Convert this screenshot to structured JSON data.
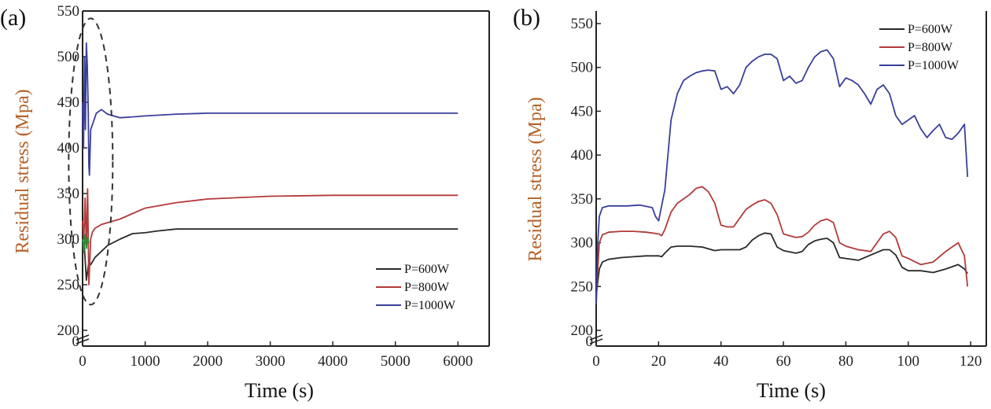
{
  "colors": {
    "p600": "#2a2a2a",
    "p800": "#b33a3a",
    "p1000": "#3a3f9a",
    "green": "#2e8b3a",
    "ylabel": "#b4622a",
    "axis": "#222222"
  },
  "chart_data": [
    {
      "panel": "(a)",
      "type": "line",
      "xlabel": "Time (s)",
      "ylabel": "Residual stress (Mpa)",
      "xlim": [
        0,
        6500
      ],
      "ylim": [
        200,
        550
      ],
      "xticks": [
        0,
        1000,
        2000,
        3000,
        4000,
        5000,
        6000
      ],
      "yticks": [
        200,
        250,
        300,
        350,
        400,
        450,
        500,
        550
      ],
      "axis_break": true,
      "break_zero_label": "0",
      "legend_position": "bottom-right",
      "annotation": "dashed ellipse around initial transient (0-300 s)",
      "series": [
        {
          "name": "P=600W",
          "x": [
            0,
            30,
            60,
            100,
            130,
            200,
            400,
            600,
            800,
            1000,
            1200,
            1500,
            2000,
            3000,
            4000,
            5000,
            6000
          ],
          "y": [
            300,
            290,
            255,
            275,
            272,
            280,
            293,
            300,
            306,
            307,
            309,
            311,
            311,
            311,
            311,
            311,
            311
          ]
        },
        {
          "name": "P=800W",
          "x": [
            0,
            20,
            40,
            60,
            80,
            100,
            130,
            160,
            200,
            300,
            400,
            600,
            800,
            1000,
            1500,
            2000,
            3000,
            4000,
            5000,
            6000
          ],
          "y": [
            320,
            300,
            345,
            290,
            355,
            250,
            300,
            308,
            312,
            316,
            318,
            322,
            328,
            334,
            340,
            344,
            347,
            348,
            348,
            348
          ]
        },
        {
          "name": "P=1000W",
          "x": [
            0,
            15,
            30,
            45,
            60,
            75,
            90,
            100,
            110,
            130,
            170,
            220,
            300,
            400,
            600,
            800,
            1000,
            1500,
            2000,
            3000,
            4000,
            5000,
            6000
          ],
          "y": [
            450,
            400,
            500,
            420,
            515,
            490,
            440,
            380,
            370,
            420,
            428,
            438,
            442,
            437,
            433,
            434,
            435,
            437,
            438,
            438,
            438,
            438,
            438
          ]
        },
        {
          "name": "green",
          "x": [
            0,
            20,
            40,
            60,
            80,
            100
          ],
          "y": [
            300,
            285,
            305,
            290,
            302,
            296
          ]
        }
      ]
    },
    {
      "panel": "(b)",
      "type": "line",
      "xlabel": "Time (s)",
      "ylabel": "Residual stress (Mpa)",
      "xlim": [
        0,
        125
      ],
      "ylim": [
        200,
        550
      ],
      "xticks": [
        0,
        20,
        40,
        60,
        80,
        100,
        120
      ],
      "yticks": [
        200,
        250,
        300,
        350,
        400,
        450,
        500,
        550
      ],
      "axis_break": true,
      "break_zero_label": "0",
      "legend_position": "top-right",
      "series": [
        {
          "name": "P=600W",
          "x": [
            0,
            0.5,
            1,
            2,
            4,
            8,
            12,
            16,
            20,
            21,
            22,
            24,
            26,
            28,
            30,
            34,
            38,
            40,
            42,
            46,
            48,
            50,
            52,
            54,
            56,
            58,
            60,
            64,
            66,
            68,
            70,
            72,
            74,
            76,
            78,
            80,
            84,
            88,
            92,
            94,
            96,
            98,
            100,
            104,
            108,
            112,
            116,
            118,
            119
          ],
          "y": [
            240,
            255,
            270,
            278,
            281,
            283,
            284,
            285,
            285,
            284,
            288,
            295,
            296,
            296,
            296,
            295,
            291,
            292,
            292,
            292,
            295,
            303,
            308,
            311,
            310,
            295,
            291,
            288,
            290,
            298,
            302,
            304,
            305,
            300,
            283,
            282,
            280,
            286,
            292,
            292,
            286,
            272,
            268,
            268,
            266,
            270,
            275,
            270,
            265
          ]
        },
        {
          "name": "P=800W",
          "x": [
            0,
            0.5,
            1,
            2,
            4,
            8,
            12,
            16,
            20,
            21,
            22,
            24,
            26,
            28,
            30,
            32,
            34,
            36,
            38,
            40,
            42,
            44,
            46,
            48,
            50,
            52,
            54,
            56,
            58,
            60,
            62,
            64,
            66,
            68,
            70,
            72,
            74,
            76,
            78,
            80,
            84,
            88,
            90,
            92,
            94,
            96,
            98,
            100,
            104,
            108,
            112,
            116,
            118,
            119
          ],
          "y": [
            230,
            270,
            300,
            309,
            312,
            313,
            313,
            312,
            310,
            308,
            315,
            335,
            345,
            350,
            355,
            362,
            364,
            358,
            345,
            320,
            318,
            318,
            328,
            338,
            343,
            347,
            349,
            345,
            332,
            310,
            308,
            306,
            307,
            312,
            320,
            325,
            327,
            323,
            300,
            296,
            292,
            290,
            300,
            310,
            313,
            306,
            285,
            282,
            275,
            278,
            290,
            300,
            285,
            250
          ]
        },
        {
          "name": "P=1000W",
          "x": [
            0,
            0.5,
            1,
            2,
            4,
            6,
            10,
            14,
            18,
            19,
            20,
            22,
            24,
            26,
            28,
            30,
            32,
            34,
            36,
            38,
            40,
            42,
            44,
            46,
            48,
            50,
            52,
            54,
            56,
            58,
            60,
            62,
            64,
            66,
            68,
            70,
            72,
            74,
            76,
            78,
            80,
            82,
            84,
            86,
            88,
            90,
            92,
            94,
            96,
            98,
            100,
            102,
            104,
            106,
            108,
            110,
            112,
            114,
            116,
            118,
            119
          ],
          "y": [
            230,
            300,
            330,
            340,
            342,
            342,
            342,
            343,
            340,
            330,
            325,
            360,
            440,
            470,
            485,
            490,
            494,
            496,
            497,
            496,
            475,
            478,
            470,
            480,
            500,
            507,
            512,
            515,
            515,
            510,
            485,
            490,
            482,
            485,
            500,
            512,
            518,
            520,
            510,
            478,
            488,
            485,
            480,
            470,
            458,
            475,
            480,
            470,
            445,
            435,
            440,
            445,
            430,
            420,
            428,
            435,
            420,
            418,
            425,
            435,
            375
          ]
        }
      ]
    }
  ]
}
